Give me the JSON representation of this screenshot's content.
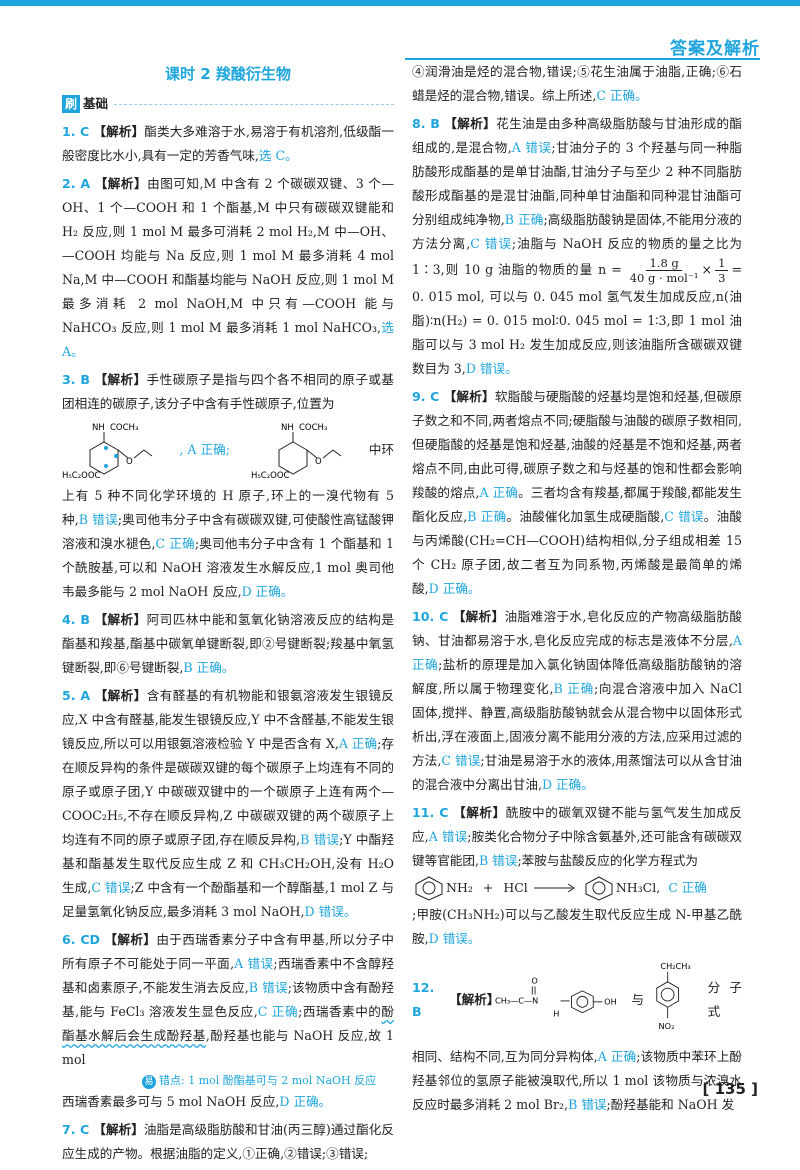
{
  "header": {
    "title": "答案及解析"
  },
  "lesson": {
    "title": "课时 2   羧酸衍生物"
  },
  "section": {
    "badge": "刷",
    "label": "基础"
  },
  "page_number": "135",
  "left": {
    "q1": {
      "num": "1. C",
      "label": "【解析】",
      "t1": "酯类大多难溶于水,易溶于有机溶剂,低级酯一般密度比水小,具有一定的芳香气味,",
      "a1": "选 C。"
    },
    "q2": {
      "num": "2. A",
      "label": "【解析】",
      "t1": "由图可知,M 中含有 2 个碳碳双键、3 个—OH、1 个—COOH 和 1 个酯基,M 中只有碳碳双键能和 H₂ 反应,则 1 mol M 最多可消耗 2 mol H₂,M 中—OH、—COOH 均能与 Na 反应,则 1 mol M 最多消耗 4 mol Na,M 中—COOH 和酯基均能与 NaOH 反应,则 1 mol M 最多消耗 2 mol NaOH,M 中只有—COOH 能与 NaHCO₃ 反应,则 1 mol M 最多消耗 1 mol NaHCO₃,",
      "a1": "选 A。"
    },
    "q3": {
      "num": "3. B",
      "label": "【解析】",
      "t1": "手性碳原子是指与四个各不相同的原子或基团相连的碳原子,该分子中含有手性碳原子,位置为",
      "s_nh": "NH",
      "s_coch3": "COCH₃",
      "s_h5c2ooc": "H₅C₂OOC",
      "s_o": "O",
      "mid": ", A 正确;",
      "tail": "中环",
      "t2": "上有 5 种不同化学环境的 H 原子,环上的一溴代物有 5 种,",
      "a2": "B 错误",
      "t3": ";奥司他韦分子中含有碳碳双键,可使酸性高锰酸钾溶液和溴水褪色,",
      "a3": "C 正确",
      "t4": ";奥司他韦分子中含有 1 个酯基和 1 个酰胺基,可以和 NaOH 溶液发生水解反应,1 mol 奥司他韦最多能与 2 mol NaOH 反应,",
      "a4": "D 正确。"
    },
    "q4": {
      "num": "4. B",
      "label": "【解析】",
      "t1": "阿司匹林中能和氢氧化钠溶液反应的结构是酯基和羧基,酯基中碳氧单键断裂,即②号键断裂;羧基中氧氢键断裂,即⑥号键断裂,",
      "a1": "B 正确。"
    },
    "q5": {
      "num": "5. A",
      "label": "【解析】",
      "t1": "含有醛基的有机物能和银氨溶液发生银镜反应,X 中含有醛基,能发生银镜反应,Y 中不含醛基,不能发生银镜反应,所以可以用银氨溶液检验 Y 中是否含有 X,",
      "a1": "A 正确",
      "t2": ";存在顺反异构的条件是碳碳双键的每个碳原子上均连有不同的原子或原子团,Y 中碳碳双键中的一个碳原子上连有两个—COOC₂H₅,不存在顺反异构,Z 中碳碳双键的两个碳原子上均连有不同的原子或原子团,存在顺反异构,",
      "a2": "B 错误",
      "t3": ";Y 中酯羟基和酯基发生取代反应生成 Z 和 CH₃CH₂OH,没有 H₂O 生成,",
      "a3": "C 错误",
      "t4": ";Z 中含有一个酚酯基和一个醇酯基,1 mol Z 与足量氢氧化钠反应,最多消耗 3 mol NaOH,",
      "a4": "D 错误。"
    },
    "q6": {
      "num": "6. CD",
      "label": "【解析】",
      "t1": "由于西瑞香素分子中含有甲基,所以分子中所有原子不可能处于同一平面,",
      "a1": "A 错误",
      "t2": ";西瑞香素中不含醇羟基和卤素原子,不能发生消去反应,",
      "a2": "B 错误",
      "t3": ";该物质中含有酚羟基,能与 FeCl₃ 溶液发生显色反应,",
      "a3": "C 正确",
      "t4": ";西瑞香素中的",
      "w1": "酚酯基水解后会生成酚羟基",
      "t5": ",酚羟基也能与 NaOH 反应,故 1 mol",
      "note_tag": "易",
      "note": "错点: 1 mol 酚酯基可与 2 mol NaOH 反应",
      "t6": "西瑞香素最多可与 5 mol NaOH 反应,",
      "a6": "D 正确。"
    },
    "q7": {
      "num": "7. C",
      "label": "【解析】",
      "t1": "油脂是高级脂肪酸和甘油(丙三醇)通过酯化反应生成的产物。根据油脂的定义,①正确,②错误;③错误;"
    }
  },
  "right": {
    "q7b": {
      "t1": "④润滑油是烃的混合物,错误;⑤花生油属于油脂,正确;⑥石蜡是烃的混合物,错误。综上所述,",
      "a1": "C 正确。"
    },
    "q8": {
      "num": "8. B",
      "label": "【解析】",
      "t1": "花生油是由多种高级脂肪酸与甘油形成的酯组成的,是混合物,",
      "a1": "A 错误",
      "t2": ";甘油分子的 3 个羟基与同一种脂肪酸形成酯基的是单甘油酯,甘油分子与至少 2 种不同脂肪酸形成酯基的是混甘油酯,同种单甘油酯和同种混甘油酯可分别组成纯净物,",
      "a2": "B 正确",
      "t3": ";高级脂肪酸钠是固体,不能用分液的方法分离,",
      "a3": "C 错误",
      "t4": ";油脂与 NaOH 反应的物质的量之比为 1∶3,则 10 g 油脂的物质的量 n =",
      "f1_top": "1.8 g",
      "f1_bot": "40 g · mol⁻¹",
      "times": "×",
      "f2_top": "1",
      "f2_bot": "3",
      "eq_end": "= 0. 015 mol,",
      "t5": "可以与 0. 045 mol 氢气发生加成反应,n(油脂)∶n(H₂) = 0. 015 mol∶0. 045 mol = 1∶3,即 1 mol 油脂可以与 3 mol H₂ 发生加成反应,则该油脂所含碳碳双键数目为 3,",
      "a5": "D 错误。"
    },
    "q9": {
      "num": "9. C",
      "label": "【解析】",
      "t1": "软脂酸与硬脂酸的烃基均是饱和烃基,但碳原子数之和不同,两者熔点不同;硬脂酸与油酸的碳原子数相同,但硬脂酸的烃基是饱和烃基,油酸的烃基是不饱和烃基,两者熔点不同,由此可得,碳原子数之和与烃基的饱和性都会影响羧酸的熔点,",
      "a1": "A 正确",
      "t2": "。三者均含有羧基,都属于羧酸,都能发生酯化反应,",
      "a2": "B 正确",
      "t3": "。油酸催化加氢生成硬脂酸,",
      "a3": "C 错误",
      "t4": "。油酸与丙烯酸(CH₂=CH—COOH)结构相似,分子组成相差 15 个 CH₂ 原子团,故二者互为同系物,丙烯酸是最简单的烯酸,",
      "a4": "D 正确。"
    },
    "q10": {
      "num": "10. C",
      "label": "【解析】",
      "t1": "油脂难溶于水,皂化反应的产物高级脂肪酸钠、甘油都易溶于水,皂化反应完成的标志是液体不分层,",
      "a1": "A 正确",
      "t2": ";盐析的原理是加入氯化钠固体降低高级脂肪酸钠的溶解度,所以属于物理变化,",
      "a2": "B 正确",
      "t3": ";向混合溶液中加入 NaCl 固体,搅拌、静置,高级脂肪酸钠就会从混合物中以固体形式析出,浮在液面上,固液分离不能用分液的方法,应采用过滤的方法,",
      "a3": "C 错误",
      "t4": ";甘油是易溶于水的液体,用蒸馏法可以从含甘油的混合液中分离出甘油,",
      "a4": "D 正确。"
    },
    "q11": {
      "num": "11. C",
      "label": "【解析】",
      "t1": "酰胺中的碳氧双键不能与氢气发生加成反应,",
      "a1": "A 错误",
      "t2": ";胺类化合物分子中除含氨基外,还可能含有碳碳双键等官能团,",
      "a2": "B 错误",
      "t3": ";苯胺与盐酸反应的化学方程式为",
      "e_nh2": "NH₂",
      "e_plus": "+",
      "e_hcl": "HCl",
      "e_nh3cl": "NH₃Cl",
      "e_comma": ",",
      "a3": "C 正确",
      "t4": ";甲胺(CH₃NH₂)可以与乙酸发生取代反应生成 N-甲基乙酰胺,",
      "a4": "D 错误。"
    },
    "q12": {
      "num": "12. B",
      "label": "【解析】",
      "s_ch3c": "CH₃—C—N",
      "s_o": "O",
      "s_h": "H",
      "s_oh": "OH",
      "s_with": "与",
      "s_c2h5": "CH₂CH₃",
      "s_no2": "NO₂",
      "s_tail": "分子式",
      "t1": "相同、结构不同,互为同分异构体,",
      "a1": "A 正确",
      "t2": ";该物质中苯环上酚羟基邻位的氢原子能被溴取代,所以 1 mol 该物质与浓溴水反应时最多消耗 2 mol Br₂,",
      "a2": "B 错误",
      "t3": ";酚羟基能和 NaOH 发"
    }
  }
}
